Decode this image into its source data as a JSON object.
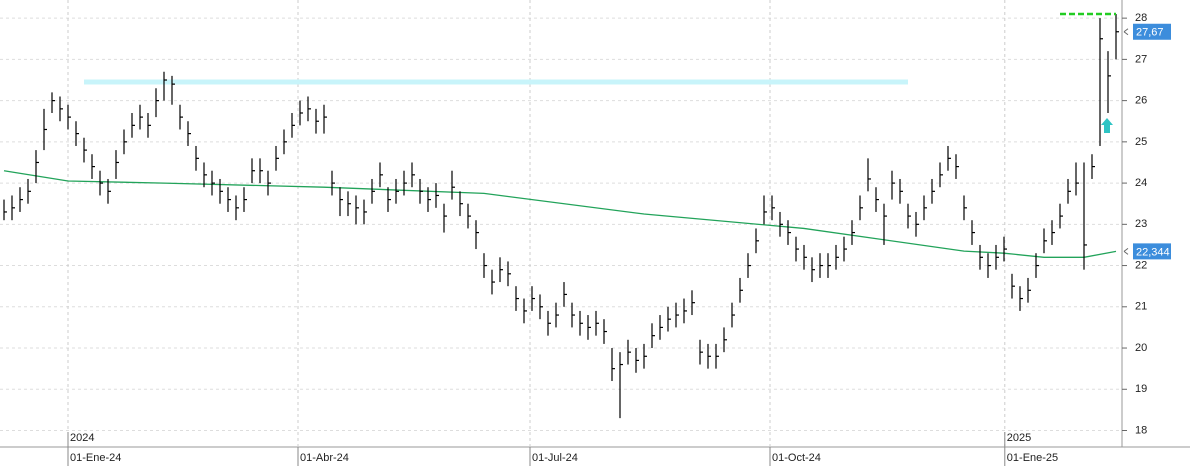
{
  "chart_data": {
    "type": "ohlc",
    "close": [
      23.3,
      23.4,
      23.6,
      23.8,
      24.5,
      25.3,
      26.0,
      25.8,
      25.6,
      25.2,
      24.8,
      24.4,
      24.0,
      23.8,
      24.5,
      25.0,
      25.4,
      25.6,
      25.4,
      26.0,
      26.5,
      26.4,
      25.6,
      25.2,
      24.6,
      24.2,
      24.0,
      23.8,
      23.6,
      23.4,
      23.6,
      24.3,
      24.3,
      24.0,
      24.6,
      25.0,
      25.4,
      25.7,
      25.8,
      25.5,
      25.6,
      24.0,
      23.6,
      23.5,
      23.4,
      23.3,
      23.8,
      24.2,
      23.6,
      23.8,
      24.0,
      24.2,
      23.8,
      23.6,
      23.7,
      23.2,
      23.9,
      23.5,
      23.2,
      22.8,
      22.0,
      21.6,
      21.9,
      21.8,
      21.2,
      20.9,
      21.2,
      21.0,
      20.6,
      20.8,
      21.3,
      20.8,
      20.6,
      20.5,
      20.6,
      20.4,
      19.5,
      19.6,
      19.9,
      19.7,
      19.8,
      20.3,
      20.5,
      20.7,
      20.8,
      20.9,
      21.1,
      19.9,
      19.8,
      19.8,
      20.2,
      20.8,
      21.4,
      22.0,
      22.6,
      23.3,
      23.4,
      23.0,
      22.8,
      22.4,
      22.2,
      21.9,
      22.0,
      22.0,
      22.2,
      22.4,
      22.8,
      23.4,
      24.1,
      23.6,
      23.2,
      24.0,
      23.8,
      23.2,
      23.0,
      23.4,
      23.8,
      24.2,
      24.6,
      24.4,
      23.4,
      22.8,
      22.2,
      22.0,
      22.2,
      22.4,
      21.5,
      21.2,
      21.4,
      22.0,
      22.6,
      22.8,
      23.2,
      23.8,
      24.0,
      22.5,
      24.4,
      27.5,
      26.6,
      27.67
    ],
    "high": [
      23.6,
      23.7,
      23.9,
      24.1,
      24.8,
      25.8,
      26.2,
      26.1,
      25.9,
      25.5,
      25.1,
      24.7,
      24.3,
      24.1,
      24.8,
      25.3,
      25.7,
      25.9,
      25.7,
      26.3,
      26.7,
      26.6,
      25.9,
      25.5,
      24.9,
      24.5,
      24.3,
      24.1,
      23.9,
      23.7,
      23.9,
      24.6,
      24.6,
      24.3,
      24.9,
      25.3,
      25.7,
      26.0,
      26.1,
      25.8,
      25.9,
      24.3,
      23.9,
      23.8,
      23.7,
      23.6,
      24.1,
      24.5,
      23.9,
      24.1,
      24.3,
      24.5,
      24.1,
      23.9,
      24.0,
      23.5,
      24.3,
      23.8,
      23.5,
      23.1,
      22.3,
      21.9,
      22.2,
      22.1,
      21.5,
      21.2,
      21.5,
      21.3,
      20.9,
      21.1,
      21.6,
      21.1,
      20.9,
      20.8,
      20.9,
      20.7,
      20.0,
      19.9,
      20.2,
      20.0,
      20.1,
      20.6,
      20.8,
      21.0,
      21.1,
      21.2,
      21.4,
      20.2,
      20.1,
      20.1,
      20.5,
      21.1,
      21.7,
      22.3,
      22.9,
      23.7,
      23.7,
      23.3,
      23.1,
      22.7,
      22.5,
      22.2,
      22.3,
      22.3,
      22.5,
      22.7,
      23.1,
      23.7,
      24.6,
      23.9,
      23.5,
      24.3,
      24.1,
      23.5,
      23.3,
      23.7,
      24.1,
      24.5,
      24.9,
      24.7,
      23.7,
      23.1,
      22.5,
      22.3,
      22.5,
      22.7,
      21.8,
      21.5,
      21.7,
      22.3,
      22.9,
      23.1,
      23.5,
      24.1,
      24.5,
      24.5,
      24.7,
      28.0,
      27.2,
      28.1
    ],
    "low": [
      23.1,
      23.1,
      23.3,
      23.5,
      24.0,
      24.8,
      25.7,
      25.5,
      25.3,
      24.9,
      24.5,
      24.1,
      23.7,
      23.5,
      24.1,
      24.7,
      25.1,
      25.3,
      25.1,
      25.6,
      26.0,
      25.9,
      25.3,
      24.9,
      24.3,
      23.9,
      23.7,
      23.5,
      23.3,
      23.1,
      23.3,
      24.0,
      24.0,
      23.7,
      24.3,
      24.7,
      25.1,
      25.4,
      25.5,
      25.2,
      25.2,
      23.7,
      23.2,
      23.2,
      23.0,
      23.0,
      23.5,
      23.9,
      23.3,
      23.5,
      23.7,
      23.9,
      23.5,
      23.3,
      23.4,
      22.8,
      23.6,
      23.2,
      22.9,
      22.4,
      21.7,
      21.3,
      21.6,
      21.5,
      20.9,
      20.6,
      20.9,
      20.7,
      20.3,
      20.5,
      21.0,
      20.5,
      20.3,
      20.2,
      20.3,
      20.1,
      19.2,
      18.3,
      19.6,
      19.4,
      19.5,
      20.0,
      20.2,
      20.4,
      20.5,
      20.6,
      20.8,
      19.6,
      19.5,
      19.5,
      19.9,
      20.5,
      21.1,
      21.7,
      22.3,
      23.0,
      23.1,
      22.7,
      22.5,
      22.1,
      21.9,
      21.6,
      21.7,
      21.7,
      21.9,
      22.1,
      22.5,
      23.1,
      23.8,
      23.3,
      22.5,
      23.6,
      23.5,
      22.9,
      22.7,
      23.1,
      23.5,
      23.9,
      24.3,
      24.1,
      23.1,
      22.5,
      21.9,
      21.7,
      21.9,
      22.1,
      21.2,
      20.9,
      21.1,
      21.7,
      22.3,
      22.5,
      22.9,
      23.5,
      23.7,
      21.9,
      24.1,
      24.9,
      25.7,
      27.0
    ],
    "bar_color": "#000000",
    "moving_average": {
      "color": "#22a35a",
      "x": [
        0,
        8,
        20,
        40,
        60,
        80,
        100,
        120,
        125,
        130,
        135,
        139
      ],
      "values": [
        24.3,
        24.05,
        24.0,
        23.9,
        23.75,
        23.25,
        22.9,
        22.35,
        22.3,
        22.2,
        22.2,
        22.344
      ],
      "value_label": "22,344"
    },
    "last_price": {
      "value": 27.67,
      "label": "27,67"
    },
    "resistance": {
      "value": 26.45,
      "x": [
        10,
        113
      ],
      "color": "#c8f4fa"
    },
    "target": {
      "value": 28.1,
      "x": [
        132,
        139
      ],
      "color": "#22cc22"
    },
    "xlim": [
      -0.5,
      139.5
    ],
    "ylim": [
      17.6,
      28.44
    ],
    "yticks": [
      18,
      19,
      20,
      21,
      22,
      23,
      24,
      25,
      26,
      27,
      28
    ],
    "xticks": [
      {
        "value": 8,
        "label": "01-Ene-24"
      },
      {
        "value": 36.75,
        "label": "01-Abr-24"
      },
      {
        "value": 65.75,
        "label": "01-Jul-24"
      },
      {
        "value": 95.75,
        "label": "01-Oct-24"
      },
      {
        "value": 125.1,
        "label": "01-Ene-25"
      }
    ],
    "year_labels": [
      {
        "value": 8,
        "label": "2024"
      },
      {
        "value": 125.1,
        "label": "2025"
      }
    ],
    "grid": true
  }
}
